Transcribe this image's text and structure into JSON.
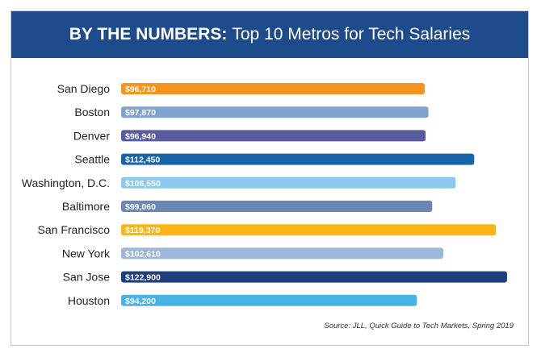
{
  "header": {
    "title_bold": "BY THE NUMBERS:",
    "title_rest": "Top 10 Metros for Tech Salaries",
    "background": "#1d4b8c"
  },
  "chart_data": {
    "type": "bar",
    "orientation": "horizontal",
    "categories": [
      "San Diego",
      "Boston",
      "Denver",
      "Seattle",
      "Washington, D.C.",
      "Baltimore",
      "San Francisco",
      "New York",
      "San Jose",
      "Houston"
    ],
    "values": [
      96710,
      97870,
      96940,
      112450,
      106550,
      99060,
      119370,
      102610,
      122900,
      94200
    ],
    "value_labels": [
      "$96,710",
      "$97,870",
      "$96,940",
      "$112,450",
      "$106,550",
      "$99,060",
      "$119,370",
      "$102,610",
      "$122,900",
      "$94,200"
    ],
    "colors": [
      "#f5951f",
      "#7fa3cf",
      "#5a5b9e",
      "#1565a8",
      "#8ac8ee",
      "#6c87b3",
      "#fbb519",
      "#9db7da",
      "#1f3f7a",
      "#47b4e4"
    ],
    "axis_visible": false,
    "grid": false,
    "legend": "none"
  },
  "source": "Source: JLL, Quick Guide to Tech Markets, Spring 2019"
}
